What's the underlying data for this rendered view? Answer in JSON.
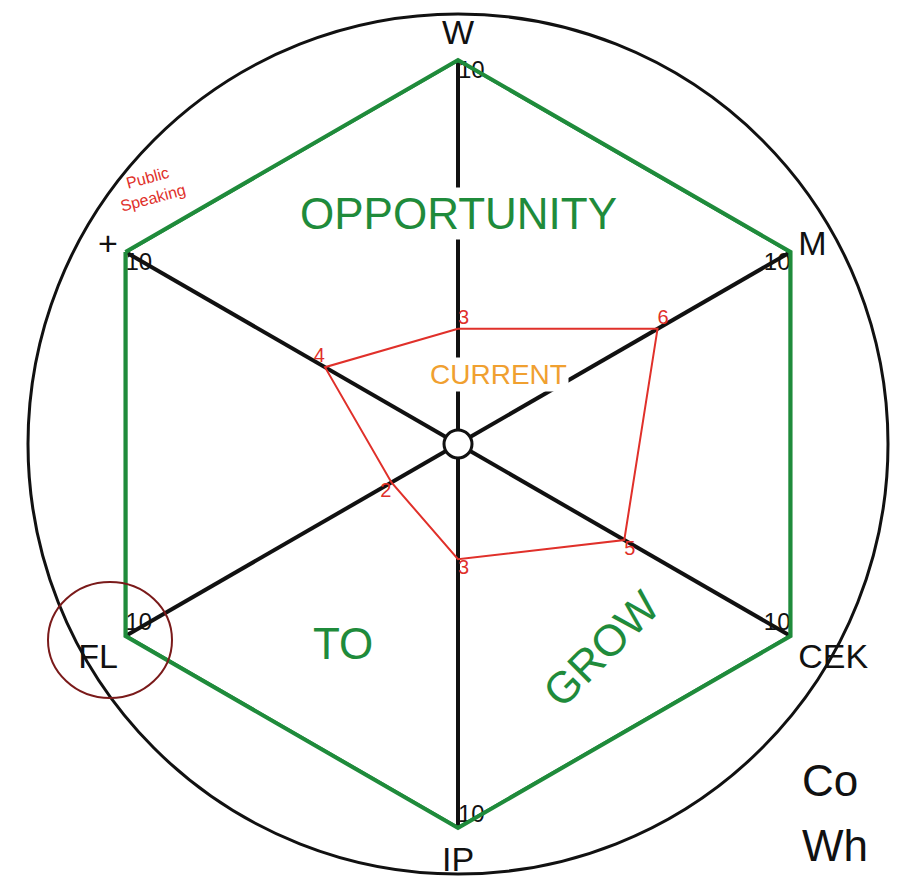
{
  "chart_data": {
    "type": "radar",
    "categories": [
      "W",
      "M",
      "CEK",
      "IP",
      "FL",
      "+"
    ],
    "series": [
      {
        "color": "#1f8b3b",
        "values": [
          10,
          10,
          10,
          10,
          10,
          10
        ]
      },
      {
        "color": "#e0302a",
        "values": [
          3,
          6,
          5,
          3,
          2,
          4
        ]
      }
    ],
    "ylim": [
      0,
      10
    ],
    "grid": true,
    "data_labels": true,
    "tick_labels": "x",
    "annotations": [
      {
        "text": "OPPORTUNITY",
        "color": "#1f8b3b"
      },
      {
        "text": "TO",
        "color": "#1f8b3b"
      },
      {
        "text": "GROW",
        "color": "#1f8b3b"
      },
      {
        "text": "CURRENT",
        "color": "#f0a030"
      },
      {
        "text": "Public Speaking",
        "color": "#e0302a"
      },
      {
        "text": "Co",
        "color": "#111111"
      },
      {
        "text": "Wh",
        "color": "#111111"
      }
    ]
  }
}
